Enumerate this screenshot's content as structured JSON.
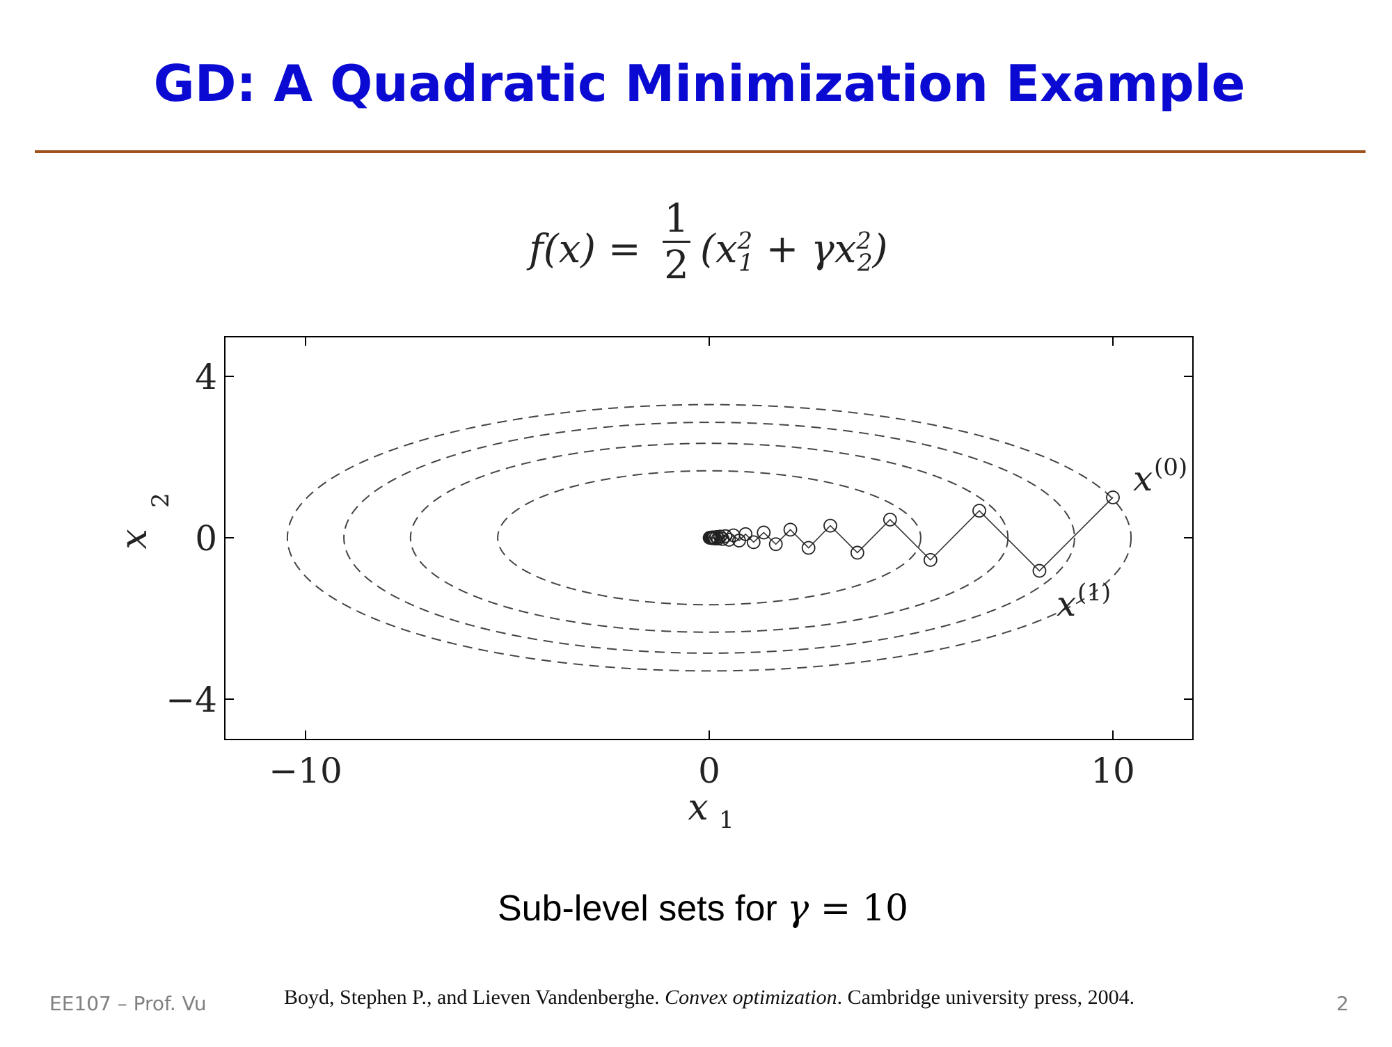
{
  "slide": {
    "title": "GD: A Quadratic Minimization Example",
    "caption_prefix": "Sub-level sets for ",
    "caption_gamma": "γ",
    "caption_eq": " = 10",
    "footer_left": "EE107 – Prof. Vu",
    "reference_authors": "Boyd, Stephen P., and Lieven Vandenberghe. ",
    "reference_title": "Convex optimization",
    "reference_rest": ". Cambridge university press, 2004.",
    "page_number": "2"
  },
  "formula": {
    "lhs": "f(x) = ",
    "numerator": "1",
    "denominator": "2",
    "open": "(x",
    "sub1": "1",
    "sup1": "2",
    "plus": " + γx",
    "sub2": "2",
    "sup2": "2",
    "close": ")"
  },
  "colors": {
    "title": "#0a0ad2",
    "rule": "#a0521c",
    "footer_gray": "#808080"
  },
  "chart_data": {
    "type": "line",
    "xlabel": "x1",
    "ylabel": "x2",
    "xlim": [
      -10,
      10
    ],
    "ylim": [
      -5,
      5
    ],
    "x_ticks": [
      -10,
      0,
      10
    ],
    "y_ticks": [
      -4,
      0,
      4
    ],
    "x_tick_labels": [
      "−10",
      "0",
      "10"
    ],
    "y_tick_labels": [
      "−4",
      "0",
      "4"
    ],
    "gamma": 10,
    "contours": [
      {
        "a": 5.24,
        "b": 1.66
      },
      {
        "a": 7.4,
        "b": 2.34
      },
      {
        "a": 9.05,
        "b": 2.86
      },
      {
        "a": 10.45,
        "b": 3.3
      }
    ],
    "iterates": {
      "x1": [
        10,
        8.18,
        6.69,
        5.48,
        4.48,
        3.67,
        3.0,
        2.46,
        2.01,
        1.65,
        1.35,
        1.1,
        0.9,
        0.74,
        0.6,
        0.49,
        0.4,
        0.33,
        0.27,
        0.22,
        0.18,
        0.15,
        0.12,
        0.1,
        0.08,
        0.07,
        0.05,
        0.04,
        0.03,
        0.02,
        0.01
      ],
      "x2": [
        1,
        -0.82,
        0.67,
        -0.55,
        0.45,
        -0.37,
        0.3,
        -0.25,
        0.2,
        -0.16,
        0.13,
        -0.11,
        0.09,
        -0.07,
        0.06,
        -0.05,
        0.04,
        -0.03,
        0.03,
        -0.02,
        0.02,
        -0.02,
        0.01,
        -0.01,
        0.01,
        -0.01,
        0.0,
        0.0,
        0.0,
        0.0,
        0.0
      ]
    },
    "annotations": [
      {
        "text": "x",
        "sup": "(0)",
        "refers_to": 0
      },
      {
        "text": "x",
        "sup": "(1)",
        "refers_to": 1
      }
    ]
  }
}
